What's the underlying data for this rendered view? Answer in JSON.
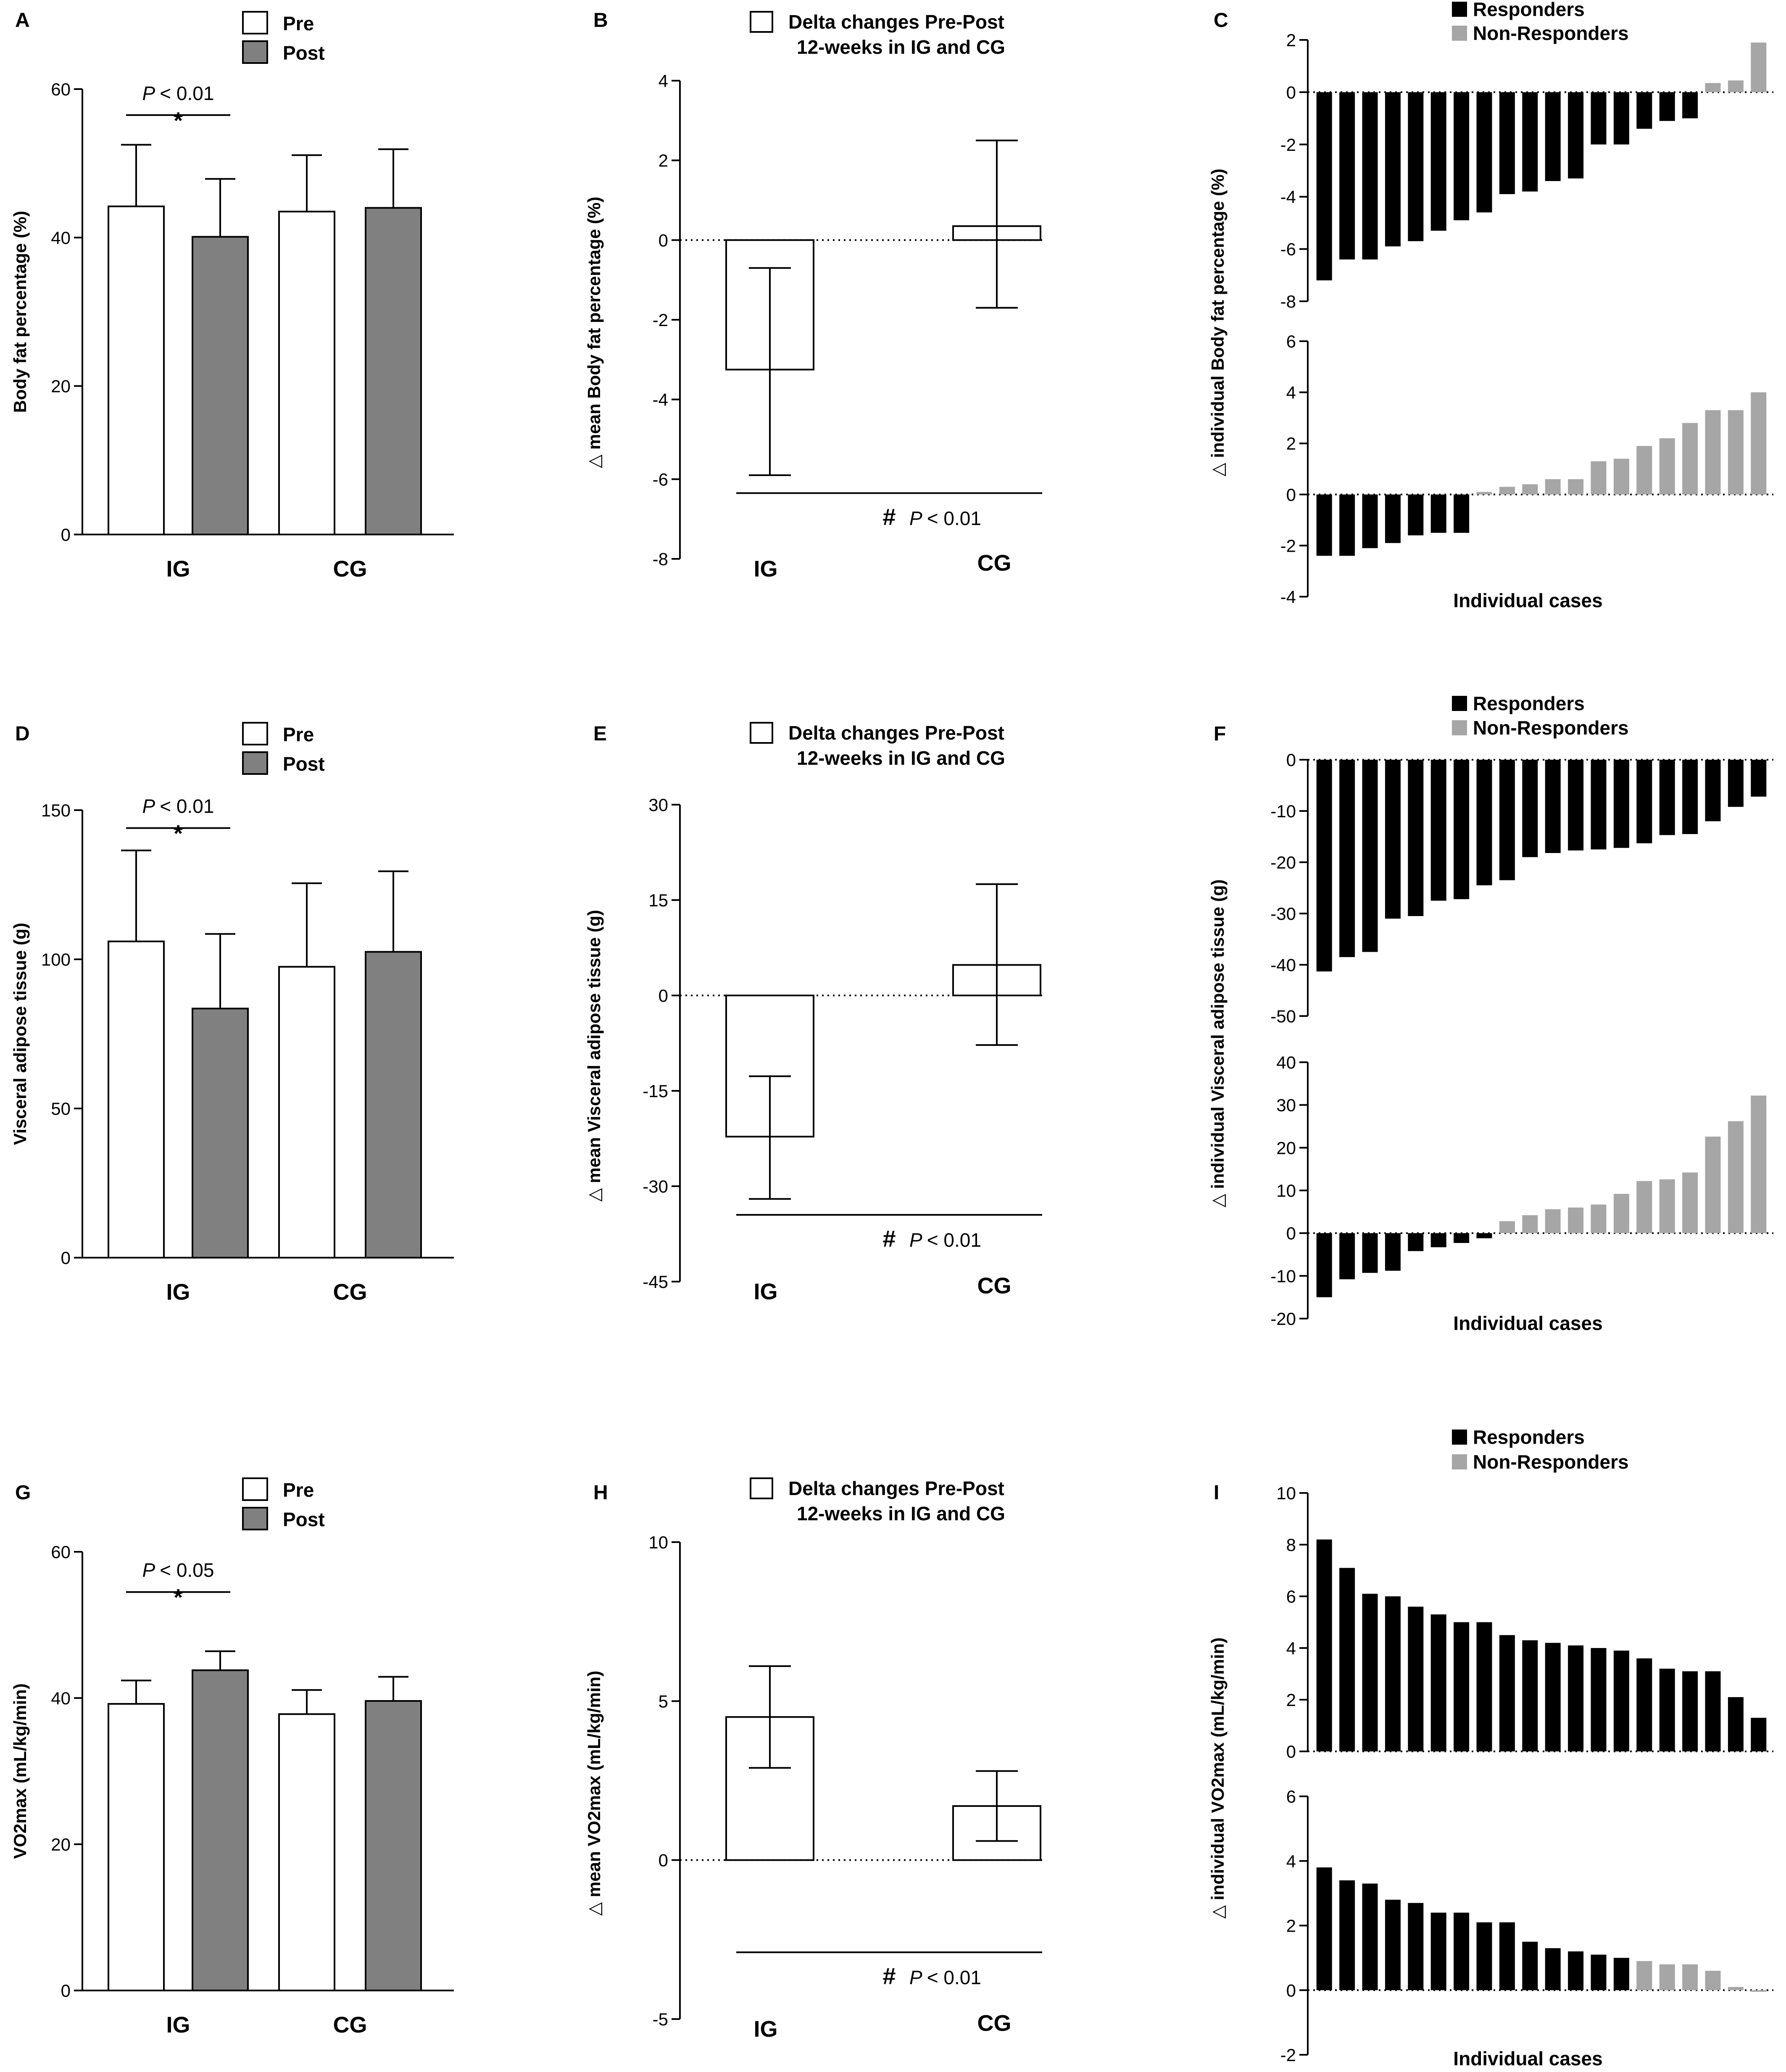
{
  "panels": [
    {
      "id": "A",
      "type": "group_bars",
      "label": "A",
      "ylabel": "Body fat percentage (%)",
      "ylim": [
        0,
        60
      ],
      "ticks": [
        0,
        20,
        40,
        60
      ],
      "legend": {
        "pre": "Pre",
        "post": "Post"
      },
      "groups": [
        {
          "name": "IG",
          "pre": {
            "mean": 44.2,
            "err": 8.3
          },
          "post": {
            "mean": 40.1,
            "err": 7.8
          }
        },
        {
          "name": "CG",
          "pre": {
            "mean": 43.5,
            "err": 7.6
          },
          "post": {
            "mean": 44.0,
            "err": 7.9
          }
        }
      ],
      "sig": {
        "p": "< 0.01",
        "mark": "*",
        "at": 56.5
      }
    },
    {
      "id": "B",
      "type": "delta",
      "label": "B",
      "ylabel": "mean Body fat percentage (%)",
      "ylim": [
        -8,
        4
      ],
      "ticks": [
        -8,
        -6,
        -4,
        -2,
        0,
        2,
        4
      ],
      "legend": "Delta changes Pre-Post 12-weeks in IG and CG",
      "groups": [
        {
          "name": "IG",
          "value": -3.25,
          "low": -5.9,
          "high": -0.7
        },
        {
          "name": "CG",
          "value": 0.35,
          "low": -1.7,
          "high": 2.5
        }
      ],
      "sig": {
        "mark": "#",
        "p": "< 0.01",
        "line": -6.35
      }
    },
    {
      "id": "C",
      "type": "waterfall",
      "label": "C",
      "ylabel": "individual Body fat percentage (%)",
      "xlabel": "Individual cases",
      "legend": {
        "responders": "Responders",
        "non_responders": "Non-Responders"
      },
      "top": {
        "ylim": [
          -8,
          2
        ],
        "ticks": [
          -8,
          -6,
          -4,
          -2,
          0,
          2
        ],
        "n": "R",
        "values": [
          -7.2,
          -6.4,
          -6.4,
          -5.9,
          -5.7,
          -5.3,
          -4.9,
          -4.6,
          -3.9,
          -3.8,
          -3.4,
          -3.3,
          -2.0,
          -2.0,
          -1.4,
          -1.1,
          -1.0,
          0.35,
          0.45,
          1.9
        ],
        "nonresp_from": 17
      },
      "bottom": {
        "ylim": [
          -4,
          6
        ],
        "ticks": [
          -4,
          -2,
          0,
          2,
          4,
          6
        ],
        "values": [
          -2.4,
          -2.4,
          -2.1,
          -1.9,
          -1.6,
          -1.5,
          -1.5,
          0.1,
          0.3,
          0.4,
          0.6,
          0.6,
          1.3,
          1.4,
          1.9,
          2.2,
          2.8,
          3.3,
          3.3,
          4.0
        ],
        "nonresp_from": 7
      }
    },
    {
      "id": "D",
      "type": "group_bars",
      "label": "D",
      "ylabel": "Visceral adipose tissue (g)",
      "ylim": [
        0,
        150
      ],
      "ticks": [
        0,
        50,
        100,
        150
      ],
      "legend": {
        "pre": "Pre",
        "post": "Post"
      },
      "groups": [
        {
          "name": "IG",
          "pre": {
            "mean": 106,
            "err": 30.5
          },
          "post": {
            "mean": 83.5,
            "err": 25
          }
        },
        {
          "name": "CG",
          "pre": {
            "mean": 97.5,
            "err": 28
          },
          "post": {
            "mean": 102.5,
            "err": 27
          }
        }
      ],
      "sig": {
        "p": "< 0.01",
        "mark": "*",
        "at": 144
      }
    },
    {
      "id": "E",
      "type": "delta",
      "label": "E",
      "ylabel": "mean Visceral adipose tissue (g)",
      "ylim": [
        -45,
        30
      ],
      "ticks": [
        -45,
        -30,
        -15,
        0,
        15,
        30
      ],
      "legend": "Delta changes Pre-Post 12-weeks in IG and CG",
      "groups": [
        {
          "name": "IG",
          "value": -22.2,
          "low": -32,
          "high": -12.7
        },
        {
          "name": "CG",
          "value": 4.8,
          "low": -7.8,
          "high": 17.5
        }
      ],
      "sig": {
        "mark": "#",
        "p": "< 0.01",
        "line": -34.5
      }
    },
    {
      "id": "F",
      "type": "waterfall",
      "label": "F",
      "ylabel": "individual Visceral adipose tissue (g)",
      "xlabel": "Individual cases",
      "legend": {
        "responders": "Responders",
        "non_responders": "Non-Responders"
      },
      "top": {
        "ylim": [
          -50,
          0
        ],
        "ticks": [
          -50,
          -40,
          -30,
          -20,
          -10,
          0
        ],
        "values": [
          -41.3,
          -38.5,
          -37.5,
          -31,
          -30.5,
          -27.5,
          -27.2,
          -24.5,
          -23.5,
          -19,
          -18.2,
          -17.7,
          -17.5,
          -17.2,
          -16.3,
          -14.7,
          -14.5,
          -12,
          -9.2,
          -7.2
        ],
        "nonresp_from": 20
      },
      "bottom": {
        "ylim": [
          -20,
          40
        ],
        "ticks": [
          -20,
          -10,
          0,
          10,
          20,
          30,
          40
        ],
        "values": [
          -15,
          -10.8,
          -9.3,
          -8.8,
          -4.2,
          -3.3,
          -2.3,
          -1.2,
          2.8,
          4.2,
          5.6,
          6.0,
          6.7,
          9.2,
          12.2,
          12.6,
          14.2,
          22.6,
          26.2,
          32.2
        ],
        "nonresp_from": 8
      }
    },
    {
      "id": "G",
      "type": "group_bars",
      "label": "G",
      "ylabel": "VO2max (mL/kg/min)",
      "ylim": [
        0,
        60
      ],
      "ticks": [
        0,
        20,
        40,
        60
      ],
      "legend": {
        "pre": "Pre",
        "post": "Post"
      },
      "groups": [
        {
          "name": "IG",
          "pre": {
            "mean": 39.2,
            "err": 3.2
          },
          "post": {
            "mean": 43.8,
            "err": 2.6
          }
        },
        {
          "name": "CG",
          "pre": {
            "mean": 37.8,
            "err": 3.3
          },
          "post": {
            "mean": 39.6,
            "err": 3.3
          }
        }
      ],
      "sig": {
        "p": "< 0.05",
        "mark": "*",
        "at": 54.5
      }
    },
    {
      "id": "H",
      "type": "delta",
      "label": "H",
      "ylabel": "mean VO2max (mL/kg/min)",
      "ylim": [
        -5,
        10
      ],
      "ticks": [
        -5,
        0,
        5,
        10
      ],
      "legend": "Delta changes Pre-Post 12-weeks in IG and CG",
      "groups": [
        {
          "name": "IG",
          "value": 4.5,
          "low": 2.9,
          "high": 6.1
        },
        {
          "name": "CG",
          "value": 1.7,
          "low": 0.6,
          "high": 2.8
        }
      ],
      "sig": {
        "mark": "#",
        "p": "< 0.01",
        "line": -2.9
      }
    },
    {
      "id": "I",
      "type": "waterfall",
      "label": "I",
      "ylabel": "individual VO2max (mL/kg/min)",
      "xlabel": "Individual cases",
      "legend": {
        "responders": "Responders",
        "non_responders": "Non-Responders"
      },
      "top": {
        "ylim": [
          0,
          10
        ],
        "ticks": [
          0,
          2,
          4,
          6,
          8,
          10
        ],
        "values": [
          8.2,
          7.1,
          6.1,
          6.0,
          5.6,
          5.3,
          5.0,
          5.0,
          4.5,
          4.3,
          4.2,
          4.1,
          4.0,
          3.9,
          3.6,
          3.2,
          3.1,
          3.1,
          2.1,
          1.3
        ],
        "nonresp_from": 20
      },
      "bottom": {
        "ylim": [
          -2,
          6
        ],
        "ticks": [
          -2,
          0,
          2,
          4,
          6
        ],
        "values": [
          3.8,
          3.4,
          3.3,
          2.8,
          2.7,
          2.4,
          2.4,
          2.1,
          2.1,
          1.5,
          1.3,
          1.2,
          1.1,
          1.0,
          0.9,
          0.8,
          0.8,
          0.6,
          0.1,
          -0.05
        ],
        "nonresp_from": 14
      }
    }
  ],
  "chart_data": [
    {
      "type": "bar",
      "panel": "A",
      "title": "",
      "xlabel": "",
      "ylabel": "Body fat percentage (%)",
      "categories": [
        "IG",
        "CG"
      ],
      "ylim": [
        0,
        60
      ],
      "series": [
        {
          "name": "Pre",
          "values": [
            44.2,
            43.5
          ]
        },
        {
          "name": "Post",
          "values": [
            40.1,
            44.0
          ]
        }
      ]
    },
    {
      "type": "bar",
      "panel": "B",
      "title": "Delta changes Pre-Post 12-weeks in IG and CG",
      "ylabel": "mean Body fat percentage (%)",
      "categories": [
        "IG",
        "CG"
      ],
      "ylim": [
        -8,
        4
      ],
      "series": [
        {
          "name": "Delta",
          "values": [
            -3.25,
            0.35
          ]
        }
      ]
    },
    {
      "type": "bar",
      "panel": "C",
      "title": "",
      "xlabel": "Individual cases",
      "ylabel": "individual Body fat percentage (%)",
      "series": [
        {
          "name": "IG",
          "values": [
            -7.2,
            -6.4,
            -6.4,
            -5.9,
            -5.7,
            -5.3,
            -4.9,
            -4.6,
            -3.9,
            -3.8,
            -3.4,
            -3.3,
            -2.0,
            -2.0,
            -1.4,
            -1.1,
            -1.0,
            0.35,
            0.45,
            1.9
          ]
        },
        {
          "name": "CG",
          "values": [
            -2.4,
            -2.4,
            -2.1,
            -1.9,
            -1.6,
            -1.5,
            -1.5,
            0.1,
            0.3,
            0.4,
            0.6,
            0.6,
            1.3,
            1.4,
            1.9,
            2.2,
            2.8,
            3.3,
            3.3,
            4.0
          ]
        }
      ]
    },
    {
      "type": "bar",
      "panel": "D",
      "ylabel": "Visceral adipose tissue (g)",
      "categories": [
        "IG",
        "CG"
      ],
      "ylim": [
        0,
        150
      ],
      "series": [
        {
          "name": "Pre",
          "values": [
            106,
            97.5
          ]
        },
        {
          "name": "Post",
          "values": [
            83.5,
            102.5
          ]
        }
      ]
    },
    {
      "type": "bar",
      "panel": "E",
      "title": "Delta changes Pre-Post 12-weeks in IG and CG",
      "ylabel": "mean Visceral adipose tissue (g)",
      "categories": [
        "IG",
        "CG"
      ],
      "ylim": [
        -45,
        30
      ],
      "series": [
        {
          "name": "Delta",
          "values": [
            -22.2,
            4.8
          ]
        }
      ]
    },
    {
      "type": "bar",
      "panel": "F",
      "xlabel": "Individual cases",
      "ylabel": "individual Visceral adipose tissue (g)",
      "series": [
        {
          "name": "IG",
          "values": [
            -41.3,
            -38.5,
            -37.5,
            -31,
            -30.5,
            -27.5,
            -27.2,
            -24.5,
            -23.5,
            -19,
            -18.2,
            -17.7,
            -17.5,
            -17.2,
            -16.3,
            -14.7,
            -14.5,
            -12,
            -9.2,
            -7.2
          ]
        },
        {
          "name": "CG",
          "values": [
            -15,
            -10.8,
            -9.3,
            -8.8,
            -4.2,
            -3.3,
            -2.3,
            -1.2,
            2.8,
            4.2,
            5.6,
            6.0,
            6.7,
            9.2,
            12.2,
            12.6,
            14.2,
            22.6,
            26.2,
            32.2
          ]
        }
      ]
    },
    {
      "type": "bar",
      "panel": "G",
      "ylabel": "VO2max (mL/kg/min)",
      "categories": [
        "IG",
        "CG"
      ],
      "ylim": [
        0,
        60
      ],
      "series": [
        {
          "name": "Pre",
          "values": [
            39.2,
            37.8
          ]
        },
        {
          "name": "Post",
          "values": [
            43.8,
            39.6
          ]
        }
      ]
    },
    {
      "type": "bar",
      "panel": "H",
      "title": "Delta changes Pre-Post 12-weeks in IG and CG",
      "ylabel": "mean VO2max (mL/kg/min)",
      "categories": [
        "IG",
        "CG"
      ],
      "ylim": [
        -5,
        10
      ],
      "series": [
        {
          "name": "Delta",
          "values": [
            4.5,
            1.7
          ]
        }
      ]
    },
    {
      "type": "bar",
      "panel": "I",
      "xlabel": "Individual cases",
      "ylabel": "individual VO2max (mL/kg/min)",
      "series": [
        {
          "name": "IG",
          "values": [
            8.2,
            7.1,
            6.1,
            6.0,
            5.6,
            5.3,
            5.0,
            5.0,
            4.5,
            4.3,
            4.2,
            4.1,
            4.0,
            3.9,
            3.6,
            3.2,
            3.1,
            3.1,
            2.1,
            1.3
          ]
        },
        {
          "name": "CG",
          "values": [
            3.8,
            3.4,
            3.3,
            2.8,
            2.7,
            2.4,
            2.4,
            2.1,
            2.1,
            1.5,
            1.3,
            1.2,
            1.1,
            1.0,
            0.9,
            0.8,
            0.8,
            0.6,
            0.1,
            -0.05
          ]
        }
      ]
    }
  ],
  "colors": {
    "post": "#808080",
    "responder": "#000000",
    "non_responder": "#a6a6a6",
    "outline": "#000000"
  },
  "delta_symbol": "△"
}
